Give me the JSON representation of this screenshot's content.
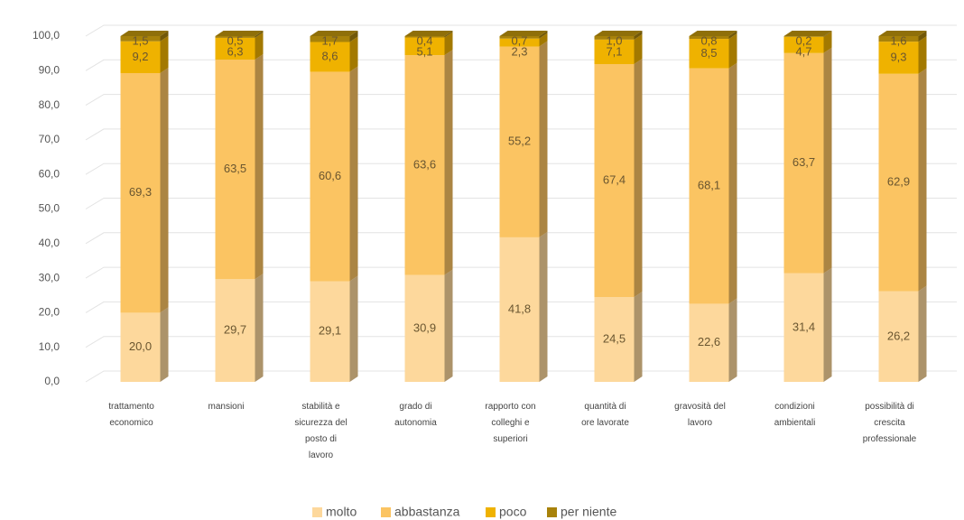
{
  "chart_data": {
    "type": "stacked-bar-3d",
    "categories": [
      "trattamento economico",
      "mansioni",
      "stabilità e sicurezza del posto di lavoro",
      "grado di autonomia",
      "rapporto con colleghi e superiori",
      "quantità di ore lavorate",
      "gravosità del lavoro",
      "condizioni ambientali",
      "possibilità di crescita professionale"
    ],
    "series": [
      {
        "name": "molto",
        "color": "#fdd89c",
        "values": [
          20.0,
          29.7,
          29.1,
          30.9,
          41.8,
          24.5,
          22.6,
          31.4,
          26.2
        ],
        "value_labels": [
          "20,0",
          "29,7",
          "29,1",
          "30,9",
          "41,8",
          "24,5",
          "22,6",
          "31,4",
          "26,2"
        ]
      },
      {
        "name": "abbastanza",
        "color": "#fbc462",
        "values": [
          69.3,
          63.5,
          60.6,
          63.6,
          55.2,
          67.4,
          68.1,
          63.7,
          62.9
        ],
        "value_labels": [
          "69,3",
          "63,5",
          "60,6",
          "63,6",
          "55,2",
          "67,4",
          "68,1",
          "63,7",
          "62,9"
        ]
      },
      {
        "name": "poco",
        "color": "#efb200",
        "values": [
          9.2,
          6.3,
          8.6,
          5.1,
          2.3,
          7.1,
          8.5,
          4.7,
          9.3
        ],
        "value_labels": [
          "9,2",
          "6,3",
          "8,6",
          "5,1",
          "2,3",
          "7,1",
          "8,5",
          "4,7",
          "9,3"
        ]
      },
      {
        "name": "per niente",
        "color": "#a8820a",
        "values": [
          1.5,
          0.5,
          1.7,
          0.4,
          0.7,
          1.0,
          0.8,
          0.2,
          1.6
        ],
        "value_labels": [
          "1,5",
          "0,5",
          "1,7",
          "0,4",
          "0,7",
          "1,0",
          "0,8",
          "0,2",
          "1,6"
        ]
      }
    ],
    "ylim": [
      0,
      100
    ],
    "yticks": [
      {
        "value": 0,
        "label": "0,0"
      },
      {
        "value": 10,
        "label": "10,0"
      },
      {
        "value": 20,
        "label": "20,0"
      },
      {
        "value": 30,
        "label": "30,0"
      },
      {
        "value": 40,
        "label": "40,0"
      },
      {
        "value": 50,
        "label": "50,0"
      },
      {
        "value": 60,
        "label": "60,0"
      },
      {
        "value": 70,
        "label": "70,0"
      },
      {
        "value": 80,
        "label": "80,0"
      },
      {
        "value": 90,
        "label": "90,0"
      },
      {
        "value": 100,
        "label": "100,0"
      }
    ],
    "grid": true,
    "legend": "bottom"
  }
}
